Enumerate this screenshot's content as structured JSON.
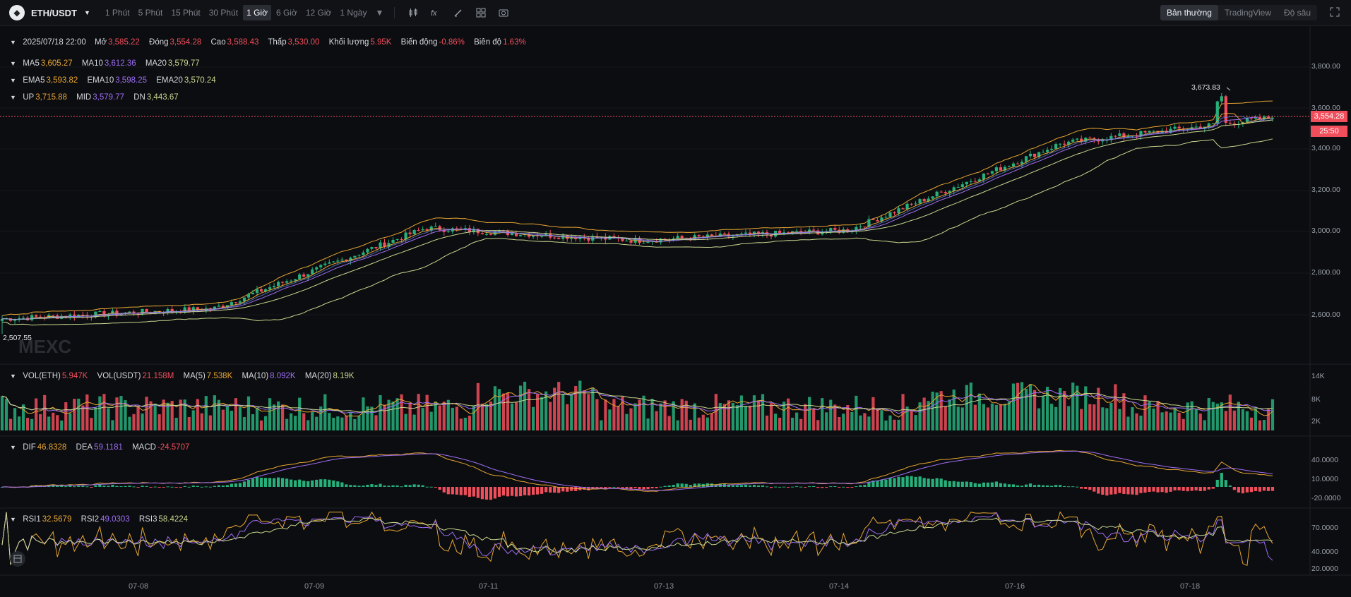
{
  "header": {
    "symbol": "ETH/USDT",
    "intervals": [
      "1 Phút",
      "5 Phút",
      "15 Phút",
      "30 Phút",
      "1 Giờ",
      "6 Giờ",
      "12 Giờ",
      "1 Ngày"
    ],
    "active_interval": "1 Giờ",
    "views": [
      "Bản thường",
      "TradingView",
      "Độ sâu"
    ],
    "active_view": "Bản thường",
    "tool_icons": [
      "candle-type-icon",
      "indicator-icon",
      "draw-icon",
      "layout-icon",
      "camera-icon"
    ]
  },
  "ohlc": {
    "date": "2025/07/18 22:00",
    "open_label": "Mở",
    "open": "3,585.22",
    "close_label": "Đóng",
    "close": "3,554.28",
    "high_label": "Cao",
    "high": "3,588.43",
    "low_label": "Thấp",
    "low": "3,530.00",
    "volume_label": "Khối lượng",
    "volume": "5.95K",
    "change_label": "Biến động",
    "change": "-0.86%",
    "amplitude_label": "Biên độ",
    "amplitude": "1.63%"
  },
  "ma": {
    "ma5_label": "MA5",
    "ma5": "3,605.27",
    "ma10_label": "MA10",
    "ma10": "3,612.36",
    "ma20_label": "MA20",
    "ma20": "3,579.77"
  },
  "ema": {
    "ema5_label": "EMA5",
    "ema5": "3,593.82",
    "ema10_label": "EMA10",
    "ema10": "3,598.25",
    "ema20_label": "EMA20",
    "ema20": "3,570.24"
  },
  "boll": {
    "up_label": "UP",
    "up": "3,715.88",
    "mid_label": "MID",
    "mid": "3,579.77",
    "dn_label": "DN",
    "dn": "3,443.67"
  },
  "volume": {
    "eth_label": "VOL(ETH)",
    "eth": "5.947K",
    "usdt_label": "VOL(USDT)",
    "usdt": "21.158M",
    "ma5_label": "MA(5)",
    "ma5": "7.538K",
    "ma10_label": "MA(10)",
    "ma10": "8.092K",
    "ma20_label": "MA(20)",
    "ma20": "8.19K",
    "ticks": [
      "14K",
      "8K",
      "2K"
    ]
  },
  "macd": {
    "dif_label": "DIF",
    "dif": "46.8328",
    "dea_label": "DEA",
    "dea": "59.1181",
    "macd_label": "MACD",
    "macd": "-24.5707",
    "ticks": [
      "40.0000",
      "10.0000",
      "-20.0000"
    ]
  },
  "rsi": {
    "rsi1_label": "RSI1",
    "rsi1": "32.5679",
    "rsi2_label": "RSI2",
    "rsi2": "49.0303",
    "rsi3_label": "RSI3",
    "rsi3": "58.4224",
    "ticks": [
      "70.0000",
      "40.0000",
      "20.0000"
    ]
  },
  "price_axis": [
    "3,800.00",
    "3,600.00",
    "3,400.00",
    "3,200.00",
    "3,000.00",
    "2,800.00",
    "2,600.00"
  ],
  "last_price": "3,554.28",
  "countdown": "25:50",
  "high_marker": "3,673.83",
  "low_marker": "2,507.55",
  "watermark": "MEXC",
  "dates": [
    "07-08",
    "07-09",
    "07-11",
    "07-13",
    "07-14",
    "07-16",
    "07-18"
  ],
  "colors": {
    "up": "#27b07b",
    "down": "#f14e5c",
    "ma5": "#e7a634",
    "ma10": "#9d6ef4",
    "ma20": "#c9d78f"
  },
  "chart_data": {
    "type": "candlestick",
    "symbol": "ETH/USDT",
    "x": [
      "07-08",
      "07-09",
      "07-11",
      "07-13",
      "07-14",
      "07-16",
      "07-18"
    ],
    "approx_close": [
      2580,
      2630,
      3020,
      2960,
      3010,
      3430,
      3554.28
    ],
    "high_point": 3673.83,
    "low_point": 2507.55,
    "ylim": [
      2500,
      3850
    ]
  }
}
